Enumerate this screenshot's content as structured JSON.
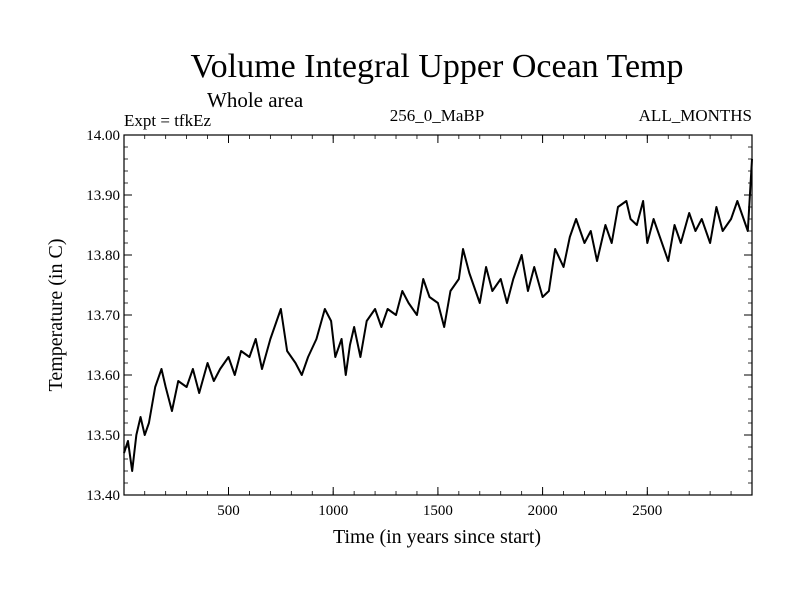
{
  "chart_data": {
    "type": "line",
    "title": "Volume Integral Upper Ocean Temp",
    "subtitle": "Whole area",
    "expt_label": "Expt = tfkEz",
    "period_label": "256_0_MaBP",
    "months_label": "ALL_MONTHS",
    "xlabel": "Time (in years since start)",
    "ylabel": "Temperature (in C)",
    "xlim": [
      1,
      3000
    ],
    "ylim": [
      13.4,
      14.0
    ],
    "x_ticks": [
      500,
      1000,
      1500,
      2000,
      2500
    ],
    "x_tick_labels": [
      "500",
      "1000",
      "1500",
      "2000",
      "2500"
    ],
    "y_ticks": [
      13.4,
      13.5,
      13.6,
      13.7,
      13.8,
      13.9,
      14.0
    ],
    "y_tick_labels": [
      "13.40",
      "13.50",
      "13.60",
      "13.70",
      "13.80",
      "13.90",
      "14.00"
    ],
    "grid": false,
    "line_color": "#000000",
    "series": [
      {
        "x": [
          1,
          20,
          40,
          60,
          80,
          100,
          120,
          150,
          180,
          200,
          230,
          260,
          300,
          330,
          360,
          400,
          430,
          460,
          500,
          530,
          560,
          600,
          630,
          660,
          700,
          730,
          750,
          780,
          820,
          850,
          880,
          920,
          960,
          990,
          1010,
          1040,
          1060,
          1080,
          1100,
          1130,
          1160,
          1200,
          1230,
          1260,
          1300,
          1330,
          1360,
          1400,
          1430,
          1460,
          1500,
          1530,
          1560,
          1600,
          1620,
          1650,
          1680,
          1700,
          1730,
          1760,
          1800,
          1830,
          1860,
          1900,
          1930,
          1960,
          2000,
          2030,
          2060,
          2100,
          2130,
          2160,
          2200,
          2230,
          2260,
          2300,
          2330,
          2360,
          2400,
          2420,
          2450,
          2480,
          2500,
          2530,
          2560,
          2600,
          2630,
          2660,
          2700,
          2730,
          2760,
          2800,
          2830,
          2860,
          2900,
          2930,
          2960,
          2980,
          3000
        ],
        "y": [
          13.47,
          13.49,
          13.44,
          13.5,
          13.53,
          13.5,
          13.52,
          13.58,
          13.61,
          13.58,
          13.54,
          13.59,
          13.58,
          13.61,
          13.57,
          13.62,
          13.59,
          13.61,
          13.63,
          13.6,
          13.64,
          13.63,
          13.66,
          13.61,
          13.66,
          13.69,
          13.71,
          13.64,
          13.62,
          13.6,
          13.63,
          13.66,
          13.71,
          13.69,
          13.63,
          13.66,
          13.6,
          13.65,
          13.68,
          13.63,
          13.69,
          13.71,
          13.68,
          13.71,
          13.7,
          13.74,
          13.72,
          13.7,
          13.76,
          13.73,
          13.72,
          13.68,
          13.74,
          13.76,
          13.81,
          13.77,
          13.74,
          13.72,
          13.78,
          13.74,
          13.76,
          13.72,
          13.76,
          13.8,
          13.74,
          13.78,
          13.73,
          13.74,
          13.81,
          13.78,
          13.83,
          13.86,
          13.82,
          13.84,
          13.79,
          13.85,
          13.82,
          13.88,
          13.89,
          13.86,
          13.85,
          13.89,
          13.82,
          13.86,
          13.83,
          13.79,
          13.85,
          13.82,
          13.87,
          13.84,
          13.86,
          13.82,
          13.88,
          13.84,
          13.86,
          13.89,
          13.86,
          13.84,
          13.96
        ]
      }
    ]
  }
}
